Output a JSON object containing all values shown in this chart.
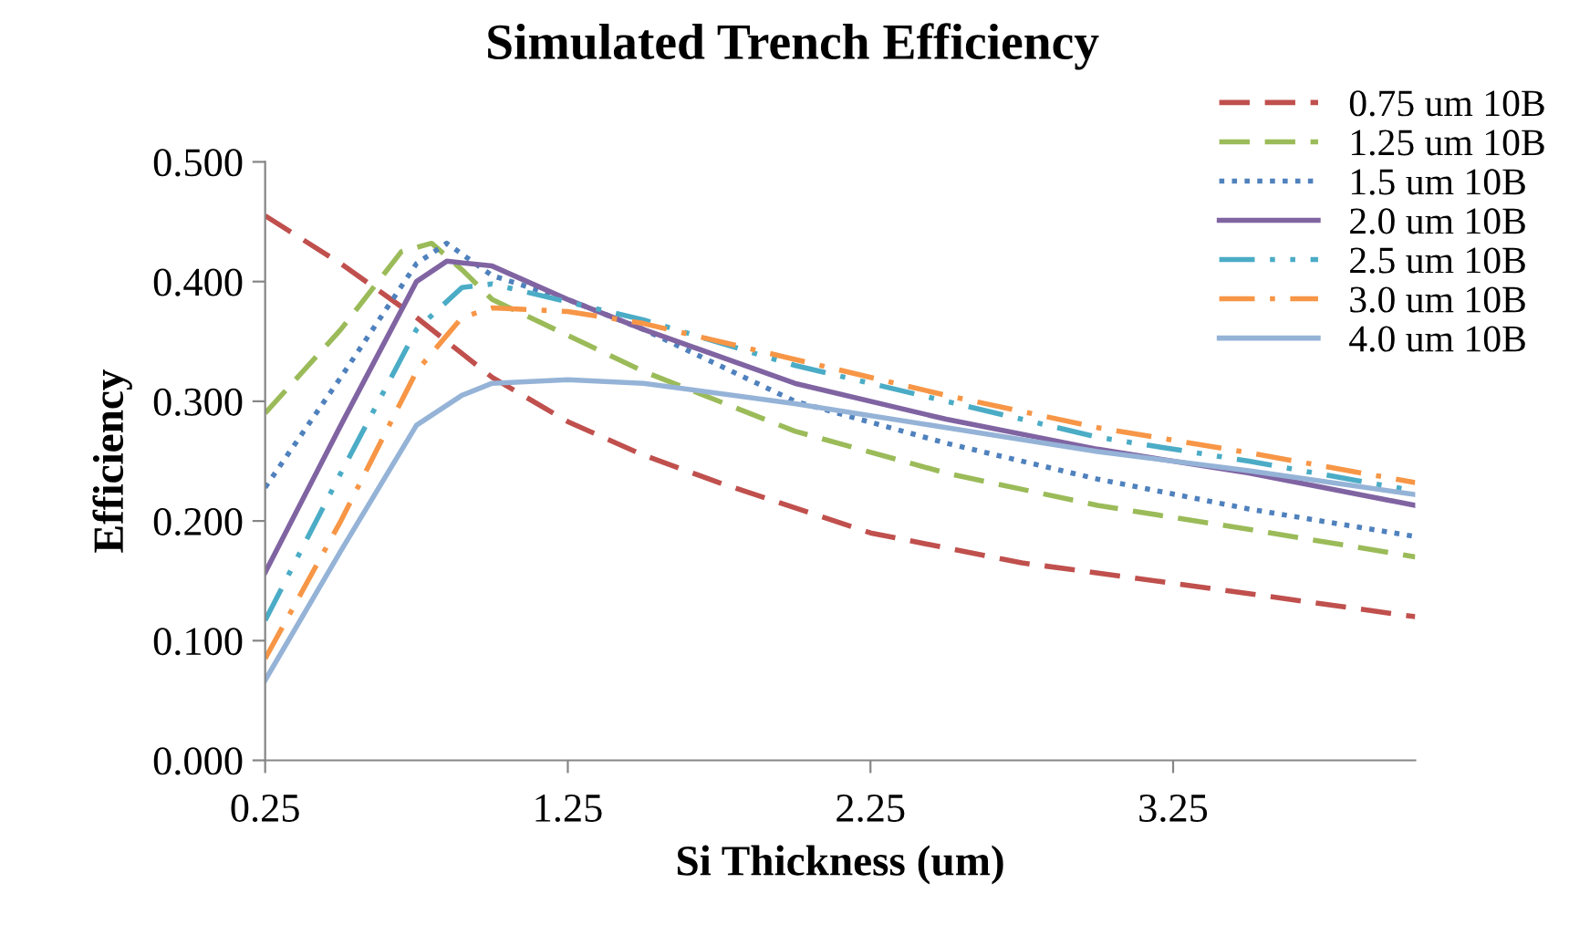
{
  "chart_data": {
    "type": "line",
    "title": "Simulated Trench Efficiency",
    "xlabel": "Si Thickness (um)",
    "ylabel": "Efficiency",
    "xlim": [
      0.25,
      4.05
    ],
    "xticks": [
      0.25,
      1.25,
      2.25,
      3.25
    ],
    "ylim": [
      0,
      0.5
    ],
    "yticks": [
      {
        "value": 0,
        "label": "0.000"
      },
      {
        "value": 0.1,
        "label": "0.100"
      },
      {
        "value": 0.2,
        "label": "0.200"
      },
      {
        "value": 0.3,
        "label": "0.300"
      },
      {
        "value": 0.4,
        "label": "0.400"
      },
      {
        "value": 0.5,
        "label": "0.500"
      }
    ],
    "grid": false,
    "legend": "top right",
    "marker": "none",
    "series": [
      {
        "name": "0.75 um 10B",
        "color": "#c0504d",
        "line_style": "dashed",
        "x": [
          0.25,
          0.5,
          0.75,
          1.0,
          1.25,
          1.5,
          1.75,
          2.25,
          2.75,
          3.25,
          4.05
        ],
        "values": [
          0.455,
          0.415,
          0.37,
          0.32,
          0.283,
          0.255,
          0.232,
          0.19,
          0.165,
          0.148,
          0.12
        ]
      },
      {
        "name": "1.25 um 10B",
        "color": "#9bbb59",
        "line_style": "dashed",
        "x": [
          0.25,
          0.5,
          0.7,
          0.8,
          0.9,
          1.0,
          1.25,
          1.5,
          2.0,
          2.5,
          3.0,
          3.5,
          4.05
        ],
        "values": [
          0.29,
          0.36,
          0.425,
          0.432,
          0.41,
          0.385,
          0.355,
          0.325,
          0.275,
          0.24,
          0.213,
          0.193,
          0.17
        ]
      },
      {
        "name": "1.5 um 10B",
        "color": "#4f81bd",
        "line_style": "dotted",
        "x": [
          0.25,
          0.5,
          0.75,
          0.85,
          1.0,
          1.25,
          1.5,
          2.0,
          2.5,
          3.0,
          3.5,
          4.05
        ],
        "values": [
          0.228,
          0.32,
          0.415,
          0.432,
          0.405,
          0.385,
          0.36,
          0.3,
          0.265,
          0.235,
          0.21,
          0.187
        ]
      },
      {
        "name": "2.0 um 10B",
        "color": "#8064a2",
        "line_style": "solid",
        "x": [
          0.25,
          0.5,
          0.75,
          0.85,
          1.0,
          1.25,
          1.5,
          2.0,
          2.5,
          3.0,
          3.5,
          4.05
        ],
        "values": [
          0.157,
          0.28,
          0.4,
          0.417,
          0.413,
          0.385,
          0.36,
          0.315,
          0.285,
          0.26,
          0.24,
          0.213
        ]
      },
      {
        "name": "2.5 um 10B",
        "color": "#4bacc6",
        "line_style": "dashdotdot",
        "x": [
          0.25,
          0.5,
          0.75,
          0.9,
          1.0,
          1.25,
          1.5,
          2.0,
          2.5,
          3.0,
          3.5,
          4.05
        ],
        "values": [
          0.117,
          0.24,
          0.36,
          0.395,
          0.398,
          0.383,
          0.368,
          0.33,
          0.3,
          0.27,
          0.25,
          0.225
        ]
      },
      {
        "name": "3.0 um 10B",
        "color": "#f79646",
        "line_style": "dashdot",
        "x": [
          0.25,
          0.5,
          0.75,
          0.9,
          1.0,
          1.25,
          1.5,
          2.0,
          2.5,
          3.0,
          3.5,
          4.05
        ],
        "values": [
          0.085,
          0.2,
          0.325,
          0.37,
          0.378,
          0.375,
          0.365,
          0.335,
          0.305,
          0.278,
          0.257,
          0.232
        ]
      },
      {
        "name": "4.0 um 10B",
        "color": "#95b3d7",
        "line_style": "solid",
        "x": [
          0.25,
          0.5,
          0.75,
          0.9,
          1.0,
          1.25,
          1.5,
          2.0,
          2.5,
          3.0,
          3.5,
          4.05
        ],
        "values": [
          0.067,
          0.175,
          0.28,
          0.305,
          0.315,
          0.318,
          0.315,
          0.298,
          0.278,
          0.258,
          0.242,
          0.222
        ]
      }
    ]
  }
}
